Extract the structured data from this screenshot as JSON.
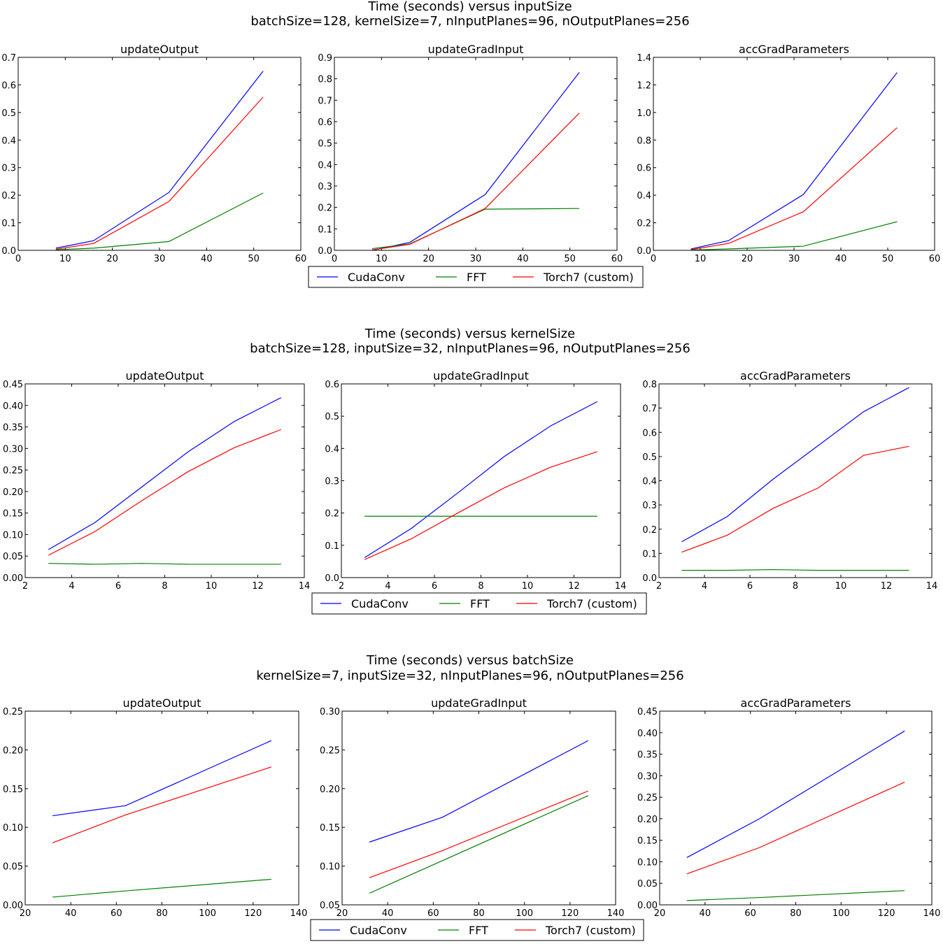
{
  "figure": {
    "colors": {
      "CudaConv": "#0000ff",
      "FFT": "#008000",
      "Torch7 (custom)": "#ff0000"
    }
  },
  "chart_data": [
    {
      "group": "inputSize",
      "title": "Time (seconds) versus inputSize",
      "subtitle": "batchSize=128, kernelSize=7, nInputPlanes=96, nOutputPlanes=256",
      "legend": [
        "CudaConv",
        "FFT",
        "Torch7 (custom)"
      ],
      "legend_position": "bottom-center",
      "panels": [
        {
          "type": "line",
          "title": "updateOutput",
          "xlim": [
            0,
            60
          ],
          "ylim": [
            0,
            0.7
          ],
          "xticks": [
            0,
            10,
            20,
            30,
            40,
            50,
            60
          ],
          "xtick_labels": [
            "0",
            "10",
            "20",
            "30",
            "40",
            "50",
            "60"
          ],
          "yticks": [
            0,
            0.1,
            0.2,
            0.3,
            0.4,
            0.5,
            0.6,
            0.7
          ],
          "ytick_labels": [
            "0.0",
            "0.1",
            "0.2",
            "0.3",
            "0.4",
            "0.5",
            "0.6",
            "0.7"
          ],
          "x": [
            8,
            16,
            32,
            52
          ],
          "series": [
            {
              "name": "CudaConv",
              "values": [
                0.008,
                0.035,
                0.21,
                0.65
              ]
            },
            {
              "name": "FFT",
              "values": [
                0.002,
                0.008,
                0.032,
                0.208
              ]
            },
            {
              "name": "Torch7 (custom)",
              "values": [
                0.004,
                0.025,
                0.177,
                0.556
              ]
            }
          ]
        },
        {
          "type": "line",
          "title": "updateGradInput",
          "xlim": [
            0,
            60
          ],
          "ylim": [
            0,
            0.9
          ],
          "xticks": [
            0,
            10,
            20,
            30,
            40,
            50,
            60
          ],
          "xtick_labels": [
            "0",
            "10",
            "20",
            "30",
            "40",
            "50",
            "60"
          ],
          "yticks": [
            0,
            0.1,
            0.2,
            0.3,
            0.4,
            0.5,
            0.6,
            0.7,
            0.8,
            0.9
          ],
          "ytick_labels": [
            "0.0",
            "0.1",
            "0.2",
            "0.3",
            "0.4",
            "0.5",
            "0.6",
            "0.7",
            "0.8",
            "0.9"
          ],
          "x": [
            8,
            16,
            32,
            52
          ],
          "series": [
            {
              "name": "CudaConv",
              "values": [
                0.0,
                0.037,
                0.26,
                0.83
              ]
            },
            {
              "name": "FFT",
              "values": [
                0.008,
                0.03,
                0.192,
                0.195
              ]
            },
            {
              "name": "Torch7 (custom)",
              "values": [
                0.002,
                0.028,
                0.195,
                0.64
              ]
            }
          ]
        },
        {
          "type": "line",
          "title": "accGradParameters",
          "xlim": [
            0,
            60
          ],
          "ylim": [
            0,
            1.4
          ],
          "xticks": [
            0,
            10,
            20,
            30,
            40,
            50,
            60
          ],
          "xtick_labels": [
            "0",
            "10",
            "20",
            "30",
            "40",
            "50",
            "60"
          ],
          "yticks": [
            0,
            0.2,
            0.4,
            0.6,
            0.8,
            1.0,
            1.2,
            1.4
          ],
          "ytick_labels": [
            "0.0",
            "0.2",
            "0.4",
            "0.6",
            "0.8",
            "1.0",
            "1.2",
            "1.4"
          ],
          "x": [
            8,
            16,
            32,
            52
          ],
          "series": [
            {
              "name": "CudaConv",
              "values": [
                0.01,
                0.07,
                0.405,
                1.29
              ]
            },
            {
              "name": "FFT",
              "values": [
                0.002,
                0.01,
                0.03,
                0.208
              ]
            },
            {
              "name": "Torch7 (custom)",
              "values": [
                0.005,
                0.05,
                0.28,
                0.89
              ]
            }
          ]
        }
      ]
    },
    {
      "group": "kernelSize",
      "title": "Time (seconds) versus kernelSize",
      "subtitle": "batchSize=128, inputSize=32, nInputPlanes=96, nOutputPlanes=256",
      "legend": [
        "CudaConv",
        "FFT",
        "Torch7 (custom)"
      ],
      "legend_position": "bottom-center",
      "panels": [
        {
          "type": "line",
          "title": "updateOutput",
          "xlim": [
            2,
            14
          ],
          "ylim": [
            0,
            0.45
          ],
          "xticks": [
            2,
            4,
            6,
            8,
            10,
            12,
            14
          ],
          "xtick_labels": [
            "2",
            "4",
            "6",
            "8",
            "10",
            "12",
            "14"
          ],
          "yticks": [
            0,
            0.05,
            0.1,
            0.15,
            0.2,
            0.25,
            0.3,
            0.35,
            0.4,
            0.45
          ],
          "ytick_labels": [
            "0.00",
            "0.05",
            "0.10",
            "0.15",
            "0.20",
            "0.25",
            "0.30",
            "0.35",
            "0.40",
            "0.45"
          ],
          "x": [
            3,
            5,
            7,
            9,
            11,
            13
          ],
          "series": [
            {
              "name": "CudaConv",
              "values": [
                0.065,
                0.128,
                0.21,
                0.292,
                0.363,
                0.418
              ]
            },
            {
              "name": "FFT",
              "values": [
                0.033,
                0.031,
                0.033,
                0.031,
                0.031,
                0.031
              ]
            },
            {
              "name": "Torch7 (custom)",
              "values": [
                0.052,
                0.107,
                0.178,
                0.246,
                0.302,
                0.344
              ]
            }
          ]
        },
        {
          "type": "line",
          "title": "updateGradInput",
          "xlim": [
            2,
            14
          ],
          "ylim": [
            0,
            0.6
          ],
          "xticks": [
            2,
            4,
            6,
            8,
            10,
            12,
            14
          ],
          "xtick_labels": [
            "2",
            "4",
            "6",
            "8",
            "10",
            "12",
            "14"
          ],
          "yticks": [
            0,
            0.1,
            0.2,
            0.3,
            0.4,
            0.5,
            0.6
          ],
          "ytick_labels": [
            "0.0",
            "0.1",
            "0.2",
            "0.3",
            "0.4",
            "0.5",
            "0.6"
          ],
          "x": [
            3,
            5,
            7,
            9,
            11,
            13
          ],
          "series": [
            {
              "name": "CudaConv",
              "values": [
                0.062,
                0.152,
                0.262,
                0.375,
                0.47,
                0.545
              ]
            },
            {
              "name": "FFT",
              "values": [
                0.19,
                0.19,
                0.19,
                0.19,
                0.19,
                0.19
              ]
            },
            {
              "name": "Torch7 (custom)",
              "values": [
                0.056,
                0.12,
                0.2,
                0.278,
                0.342,
                0.39
              ]
            }
          ]
        },
        {
          "type": "line",
          "title": "accGradParameters",
          "xlim": [
            2,
            14
          ],
          "ylim": [
            0,
            0.8
          ],
          "xticks": [
            2,
            4,
            6,
            8,
            10,
            12,
            14
          ],
          "xtick_labels": [
            "2",
            "4",
            "6",
            "8",
            "10",
            "12",
            "14"
          ],
          "yticks": [
            0,
            0.1,
            0.2,
            0.3,
            0.4,
            0.5,
            0.6,
            0.7,
            0.8
          ],
          "ytick_labels": [
            "0.0",
            "0.1",
            "0.2",
            "0.3",
            "0.4",
            "0.5",
            "0.6",
            "0.7",
            "0.8"
          ],
          "x": [
            3,
            5,
            7,
            9,
            11,
            13
          ],
          "series": [
            {
              "name": "CudaConv",
              "values": [
                0.148,
                0.252,
                0.405,
                0.545,
                0.685,
                0.785
              ]
            },
            {
              "name": "FFT",
              "values": [
                0.03,
                0.03,
                0.033,
                0.03,
                0.03,
                0.03
              ]
            },
            {
              "name": "Torch7 (custom)",
              "values": [
                0.105,
                0.175,
                0.285,
                0.37,
                0.505,
                0.542
              ]
            }
          ]
        }
      ]
    },
    {
      "group": "batchSize",
      "title": "Time (seconds) versus batchSize",
      "subtitle": "kernelSize=7, inputSize=32, nInputPlanes=96, nOutputPlanes=256",
      "legend": [
        "CudaConv",
        "FFT",
        "Torch7 (custom)"
      ],
      "legend_position": "bottom-center",
      "panels": [
        {
          "type": "line",
          "title": "updateOutput",
          "xlim": [
            20,
            140
          ],
          "ylim": [
            0,
            0.25
          ],
          "xticks": [
            20,
            40,
            60,
            80,
            100,
            120,
            140
          ],
          "xtick_labels": [
            "20",
            "40",
            "60",
            "80",
            "100",
            "120",
            "140"
          ],
          "yticks": [
            0,
            0.05,
            0.1,
            0.15,
            0.2,
            0.25
          ],
          "ytick_labels": [
            "0.00",
            "0.05",
            "0.10",
            "0.15",
            "0.20",
            "0.25"
          ],
          "x": [
            32,
            64,
            128
          ],
          "series": [
            {
              "name": "CudaConv",
              "values": [
                0.115,
                0.128,
                0.212
              ]
            },
            {
              "name": "FFT",
              "values": [
                0.01,
                0.018,
                0.033
              ]
            },
            {
              "name": "Torch7 (custom)",
              "values": [
                0.08,
                0.116,
                0.178
              ]
            }
          ]
        },
        {
          "type": "line",
          "title": "updateGradInput",
          "xlim": [
            20,
            140
          ],
          "ylim": [
            0.05,
            0.3
          ],
          "xticks": [
            20,
            40,
            60,
            80,
            100,
            120,
            140
          ],
          "xtick_labels": [
            "20",
            "40",
            "60",
            "80",
            "100",
            "120",
            "140"
          ],
          "yticks": [
            0.05,
            0.1,
            0.15,
            0.2,
            0.25,
            0.3
          ],
          "ytick_labels": [
            "0.05",
            "0.10",
            "0.15",
            "0.20",
            "0.25",
            "0.30"
          ],
          "x": [
            32,
            64,
            128
          ],
          "series": [
            {
              "name": "CudaConv",
              "values": [
                0.131,
                0.163,
                0.262
              ]
            },
            {
              "name": "FFT",
              "values": [
                0.065,
                0.107,
                0.191
              ]
            },
            {
              "name": "Torch7 (custom)",
              "values": [
                0.085,
                0.12,
                0.197
              ]
            }
          ]
        },
        {
          "type": "line",
          "title": "accGradParameters",
          "xlim": [
            20,
            140
          ],
          "ylim": [
            0,
            0.45
          ],
          "xticks": [
            20,
            40,
            60,
            80,
            100,
            120,
            140
          ],
          "xtick_labels": [
            "20",
            "40",
            "60",
            "80",
            "100",
            "120",
            "140"
          ],
          "yticks": [
            0,
            0.05,
            0.1,
            0.15,
            0.2,
            0.25,
            0.3,
            0.35,
            0.4,
            0.45
          ],
          "ytick_labels": [
            "0.00",
            "0.05",
            "0.10",
            "0.15",
            "0.20",
            "0.25",
            "0.30",
            "0.35",
            "0.40",
            "0.45"
          ],
          "x": [
            32,
            64,
            128
          ],
          "series": [
            {
              "name": "CudaConv",
              "values": [
                0.11,
                0.2,
                0.404
              ]
            },
            {
              "name": "FFT",
              "values": [
                0.01,
                0.017,
                0.033
              ]
            },
            {
              "name": "Torch7 (custom)",
              "values": [
                0.072,
                0.133,
                0.285
              ]
            }
          ]
        }
      ]
    }
  ]
}
